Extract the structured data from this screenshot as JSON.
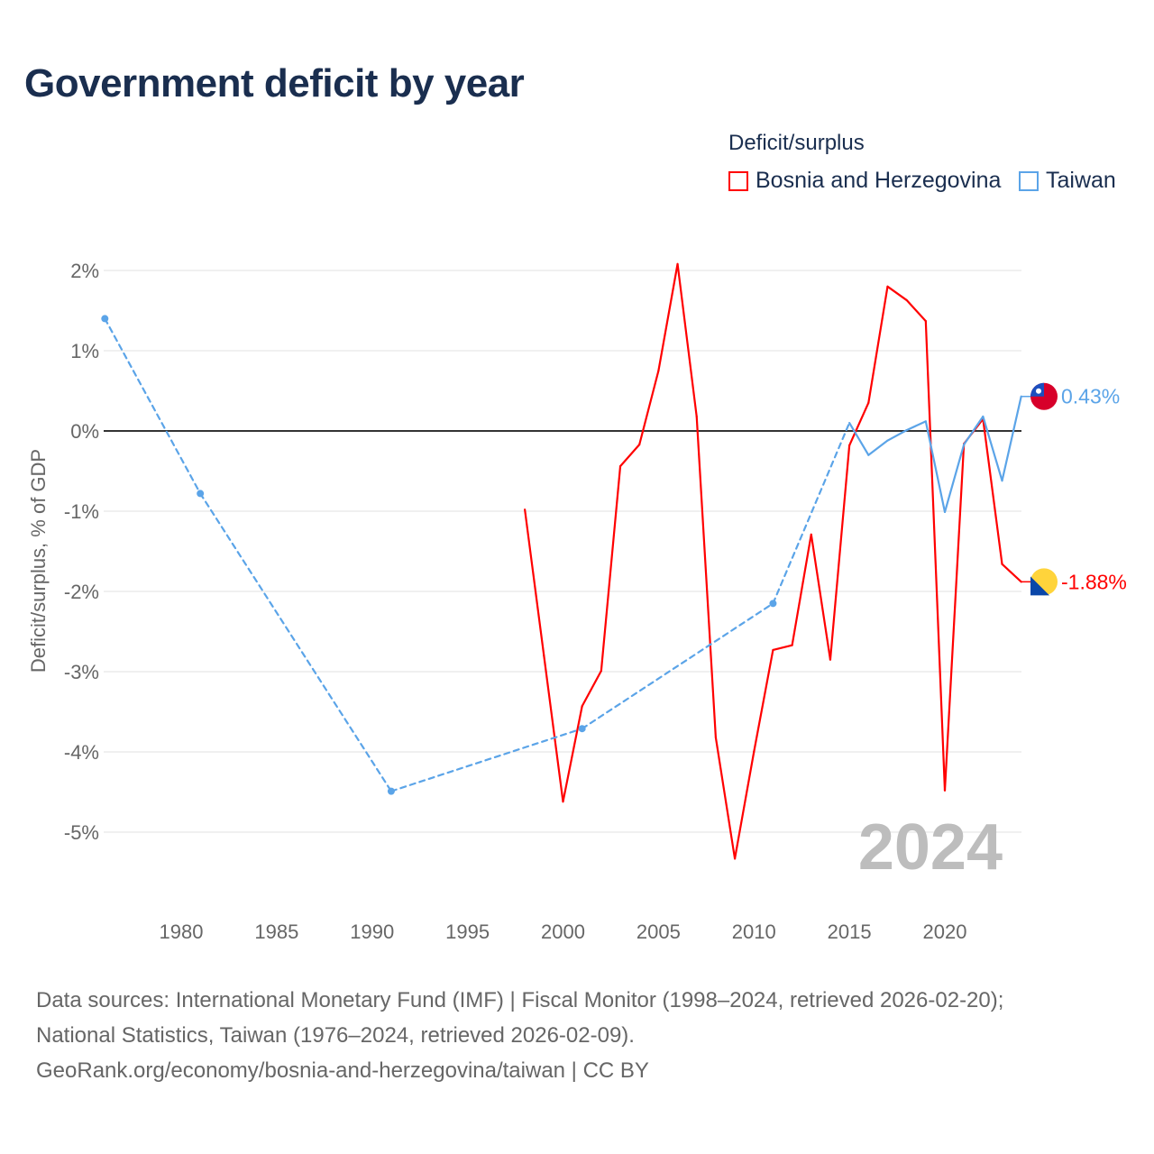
{
  "title": "Government deficit by year",
  "legend": {
    "title": "Deficit/surplus",
    "items": [
      "Bosnia and Herzegovina",
      "Taiwan"
    ]
  },
  "footer": [
    "Data sources: International Monetary Fund (IMF) | Fiscal Monitor (1998–2024, retrieved 2026-02-20);",
    "National Statistics, Taiwan (1976–2024, retrieved 2026-02-09).",
    "GeoRank.org/economy/bosnia-and-herzegovina/taiwan | CC BY"
  ],
  "chart_data": {
    "type": "line",
    "title": "Government deficit by year",
    "xlabel": "",
    "ylabel": "Deficit/surplus, % of GDP",
    "xlim": [
      1976,
      2024
    ],
    "ylim": [
      -5.5,
      2.2
    ],
    "xticks": [
      1980,
      1985,
      1990,
      1995,
      2000,
      2005,
      2010,
      2015,
      2020
    ],
    "yticks": [
      2,
      1,
      0,
      -1,
      -2,
      -3,
      -4,
      -5
    ],
    "ytick_labels": [
      "2%",
      "1%",
      "0%",
      "-1%",
      "-2%",
      "-3%",
      "-4%",
      "-5%"
    ],
    "year_label": "2024",
    "series": [
      {
        "name": "Bosnia and Herzegovina",
        "color": "#ff0000",
        "end_label": "-1.88%",
        "x": [
          1998,
          1999,
          2000,
          2001,
          2002,
          2003,
          2004,
          2005,
          2006,
          2007,
          2008,
          2009,
          2010,
          2011,
          2012,
          2013,
          2014,
          2015,
          2016,
          2017,
          2018,
          2019,
          2020,
          2021,
          2022,
          2023,
          2024
        ],
        "y": [
          -0.98,
          -2.8,
          -4.62,
          -3.43,
          -2.99,
          -0.44,
          -0.17,
          0.75,
          2.08,
          0.18,
          -3.82,
          -5.33,
          -4.0,
          -2.73,
          -2.67,
          -1.29,
          -2.85,
          -0.18,
          0.35,
          1.8,
          1.63,
          1.37,
          -4.48,
          -0.16,
          0.15,
          -1.66,
          -1.88
        ]
      },
      {
        "name": "Taiwan",
        "color": "#5ba4e8",
        "end_label": "0.43%",
        "x": [
          1976,
          1981,
          1991,
          2001,
          2011,
          2015,
          2016,
          2017,
          2018,
          2019,
          2020,
          2021,
          2022,
          2023,
          2024
        ],
        "y": [
          1.4,
          -0.78,
          -4.49,
          -3.71,
          -2.15,
          0.1,
          -0.3,
          -0.12,
          0.01,
          0.12,
          -1.01,
          -0.17,
          0.18,
          -0.62,
          0.43
        ]
      }
    ]
  }
}
